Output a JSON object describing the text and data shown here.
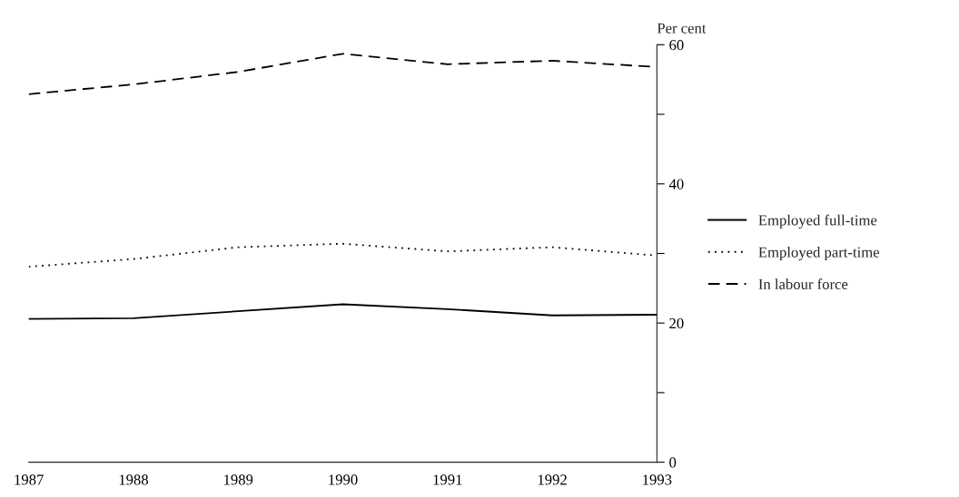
{
  "chart_data": {
    "type": "line",
    "ylabel": "Per cent",
    "x": [
      1987,
      1988,
      1989,
      1990,
      1991,
      1992,
      1993
    ],
    "series": [
      {
        "name": "Employed full-time",
        "color": "#000000",
        "line_style": "solid",
        "values": [
          20.6,
          20.7,
          21.7,
          22.7,
          22.0,
          21.1,
          21.2
        ]
      },
      {
        "name": "Employed part-time",
        "color": "#000000",
        "line_style": "dotted",
        "values": [
          28.1,
          29.2,
          30.9,
          31.4,
          30.3,
          30.9,
          29.7
        ]
      },
      {
        "name": "In labour force",
        "color": "#000000",
        "line_style": "dashed",
        "values": [
          52.9,
          54.3,
          56.1,
          58.7,
          57.2,
          57.7,
          56.8
        ]
      }
    ],
    "xlim": [
      1987,
      1993
    ],
    "xticks": [
      1987,
      1988,
      1989,
      1990,
      1991,
      1992,
      1993
    ],
    "ylim": [
      0,
      60
    ],
    "yticks": [
      0,
      {
        "value": 10,
        "label": null
      },
      20,
      {
        "value": 30,
        "label": null
      },
      40,
      {
        "value": 50,
        "label": null
      },
      60
    ],
    "grid": false,
    "legend": "right",
    "marker": "none"
  }
}
